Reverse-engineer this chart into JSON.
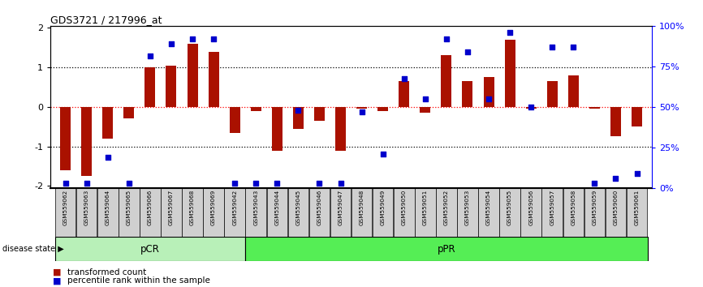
{
  "title": "GDS3721 / 217996_at",
  "samples": [
    "GSM559062",
    "GSM559063",
    "GSM559064",
    "GSM559065",
    "GSM559066",
    "GSM559067",
    "GSM559068",
    "GSM559069",
    "GSM559042",
    "GSM559043",
    "GSM559044",
    "GSM559045",
    "GSM559046",
    "GSM559047",
    "GSM559048",
    "GSM559049",
    "GSM559050",
    "GSM559051",
    "GSM559052",
    "GSM559053",
    "GSM559054",
    "GSM559055",
    "GSM559056",
    "GSM559057",
    "GSM559058",
    "GSM559059",
    "GSM559060",
    "GSM559061"
  ],
  "bar_values": [
    -1.6,
    -1.75,
    -0.8,
    -0.3,
    1.0,
    1.05,
    1.6,
    1.4,
    -0.65,
    -0.1,
    -1.1,
    -0.55,
    -0.35,
    -1.1,
    -0.05,
    -0.1,
    0.65,
    -0.15,
    1.3,
    0.65,
    0.75,
    1.7,
    -0.05,
    0.65,
    0.8,
    -0.05,
    -0.75,
    -0.5
  ],
  "percentile_values": [
    2,
    2,
    18,
    2,
    82,
    90,
    93,
    93,
    2,
    2,
    2,
    48,
    2,
    2,
    47,
    20,
    68,
    55,
    93,
    85,
    55,
    97,
    50,
    88,
    88,
    2,
    5,
    8
  ],
  "pcr_count": 9,
  "ppr_count": 19,
  "bar_color": "#aa1100",
  "dot_color": "#0000cc",
  "pcr_facecolor": "#b8f0b8",
  "ppr_facecolor": "#55ee55",
  "label_bg_color": "#d0d0d0",
  "right_ticks": [
    0,
    25,
    50,
    75,
    100
  ],
  "right_tick_labels": [
    "0%",
    "25%",
    "50%",
    "75%",
    "100%"
  ],
  "left_ticks": [
    -2,
    -1,
    0,
    1,
    2
  ],
  "left_tick_labels": [
    "-2",
    "-1",
    "0",
    "1",
    "2"
  ],
  "ylim": [
    -2.05,
    2.05
  ]
}
